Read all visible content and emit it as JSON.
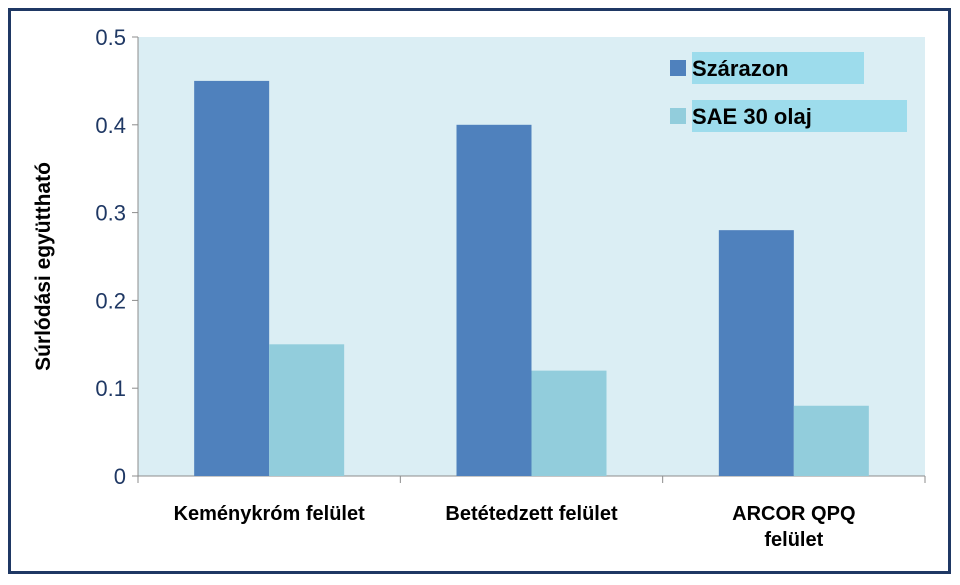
{
  "chart_data": {
    "type": "bar",
    "title": "",
    "xlabel": "",
    "ylabel": "Súrlódási együttható",
    "categories": [
      [
        "Keménykróm felület"
      ],
      [
        "Betétedzett felület"
      ],
      [
        "ARCOR QPQ",
        "felület"
      ]
    ],
    "series": [
      {
        "name": "Szárazon",
        "color": "#4f81bd",
        "values": [
          0.45,
          0.4,
          0.28
        ]
      },
      {
        "name": "SAE 30 olaj",
        "color": "#92cddc",
        "values": [
          0.15,
          0.12,
          0.08
        ]
      }
    ],
    "ylim": [
      0,
      0.5
    ],
    "yticks": [
      "0",
      "0.1",
      "0.2",
      "0.3",
      "0.4",
      "0.5"
    ],
    "yticks_values": [
      0,
      0.1,
      0.2,
      0.3,
      0.4,
      0.5
    ],
    "plot_background": "#dbeef4",
    "legend_highlight": "#9ddcec",
    "legend_position": "top-right",
    "grid": false
  }
}
